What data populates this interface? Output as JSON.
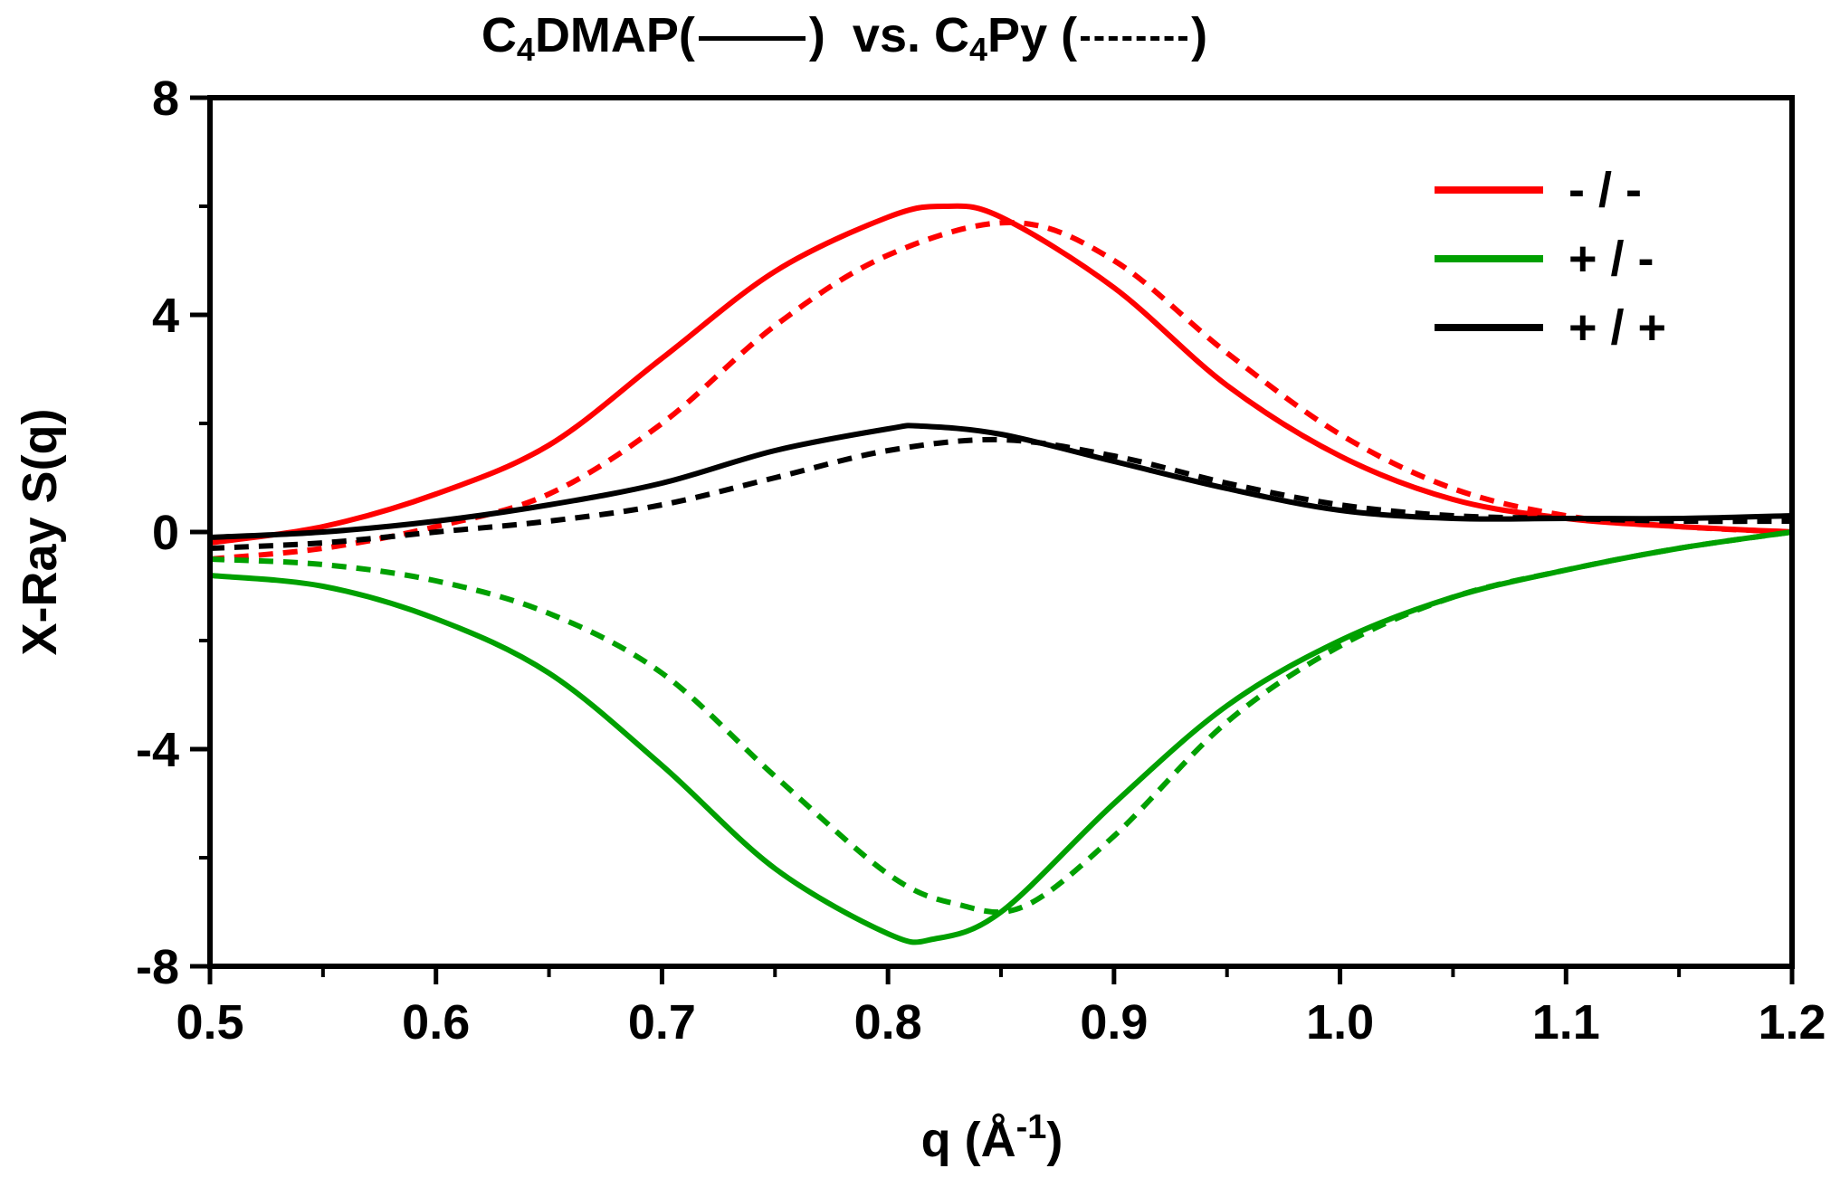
{
  "chart_data": {
    "type": "line",
    "title_parts": {
      "a_main": "C",
      "a_sub": "4",
      "a_rest": "DMAP(",
      "close1": ")",
      "vs": "vs.",
      "b_main": "C",
      "b_sub": "4",
      "b_rest": "Py (",
      "close2": ")"
    },
    "xlabel_main": "q (Å",
    "xlabel_sup": "-1",
    "xlabel_close": ")",
    "ylabel": "X-Ray S(q)",
    "xlim": [
      0.5,
      1.2
    ],
    "ylim": [
      -8,
      8
    ],
    "xticks": [
      0.5,
      0.6,
      0.7,
      0.8,
      0.9,
      1.0,
      1.1,
      1.2
    ],
    "xtick_labels": [
      "0.5",
      "0.6",
      "0.7",
      "0.8",
      "0.9",
      "1.0",
      "1.1",
      "1.2"
    ],
    "yticks": [
      -8,
      -4,
      0,
      4,
      8
    ],
    "ytick_labels": [
      "-8",
      "-4",
      "0",
      "4",
      "8"
    ],
    "legend_position": "top-right",
    "legend": [
      {
        "label": "-  / -",
        "color": "#ff0000"
      },
      {
        "label": "+ / -",
        "color": "#00a000"
      },
      {
        "label": "+ / +",
        "color": "#000000"
      }
    ],
    "series": [
      {
        "group": "C4DMAP",
        "legend": "-  / -",
        "style": "solid",
        "color": "#ff0000",
        "x": [
          0.5,
          0.55,
          0.6,
          0.65,
          0.7,
          0.75,
          0.8,
          0.825,
          0.85,
          0.9,
          0.95,
          1.0,
          1.05,
          1.1,
          1.15,
          1.2
        ],
        "y": [
          -0.2,
          0.1,
          0.7,
          1.6,
          3.2,
          4.8,
          5.8,
          6.0,
          5.8,
          4.5,
          2.7,
          1.4,
          0.6,
          0.25,
          0.1,
          0.0
        ]
      },
      {
        "group": "C4Py",
        "legend": "-  / -",
        "style": "dashed",
        "color": "#ff0000",
        "x": [
          0.5,
          0.55,
          0.6,
          0.65,
          0.7,
          0.75,
          0.8,
          0.855,
          0.9,
          0.95,
          1.0,
          1.05,
          1.1,
          1.15,
          1.2
        ],
        "y": [
          -0.5,
          -0.3,
          0.1,
          0.7,
          2.0,
          3.8,
          5.1,
          5.7,
          5.0,
          3.3,
          1.8,
          0.8,
          0.3,
          0.1,
          0.0
        ]
      },
      {
        "group": "C4DMAP",
        "legend": "+ / -",
        "style": "solid",
        "color": "#00a000",
        "x": [
          0.5,
          0.55,
          0.6,
          0.65,
          0.7,
          0.75,
          0.8,
          0.82,
          0.85,
          0.9,
          0.95,
          1.0,
          1.05,
          1.1,
          1.15,
          1.2
        ],
        "y": [
          -0.8,
          -1.0,
          -1.6,
          -2.6,
          -4.3,
          -6.2,
          -7.4,
          -7.5,
          -7.0,
          -5.0,
          -3.2,
          -2.0,
          -1.2,
          -0.7,
          -0.3,
          0.0
        ]
      },
      {
        "group": "C4Py",
        "legend": "+ / -",
        "style": "dashed",
        "color": "#00a000",
        "x": [
          0.5,
          0.55,
          0.6,
          0.65,
          0.7,
          0.75,
          0.8,
          0.83,
          0.86,
          0.9,
          0.95,
          1.0,
          1.05,
          1.1,
          1.15,
          1.2
        ],
        "y": [
          -0.5,
          -0.6,
          -0.9,
          -1.5,
          -2.6,
          -4.5,
          -6.3,
          -6.85,
          -6.9,
          -5.6,
          -3.5,
          -2.1,
          -1.2,
          -0.7,
          -0.3,
          0.0
        ]
      },
      {
        "group": "C4DMAP",
        "legend": "+ / +",
        "style": "solid",
        "color": "#000000",
        "x": [
          0.5,
          0.55,
          0.6,
          0.65,
          0.7,
          0.75,
          0.8,
          0.815,
          0.85,
          0.9,
          0.95,
          1.0,
          1.05,
          1.1,
          1.15,
          1.2
        ],
        "y": [
          -0.1,
          0.0,
          0.2,
          0.5,
          0.9,
          1.5,
          1.9,
          1.95,
          1.8,
          1.3,
          0.8,
          0.4,
          0.25,
          0.25,
          0.25,
          0.3
        ]
      },
      {
        "group": "C4Py",
        "legend": "+ / +",
        "style": "dashed",
        "color": "#000000",
        "x": [
          0.5,
          0.55,
          0.6,
          0.65,
          0.7,
          0.75,
          0.8,
          0.85,
          0.9,
          0.95,
          1.0,
          1.05,
          1.1,
          1.15,
          1.2
        ],
        "y": [
          -0.3,
          -0.2,
          0.0,
          0.2,
          0.5,
          1.0,
          1.5,
          1.7,
          1.4,
          0.9,
          0.5,
          0.3,
          0.25,
          0.2,
          0.2
        ]
      }
    ]
  }
}
